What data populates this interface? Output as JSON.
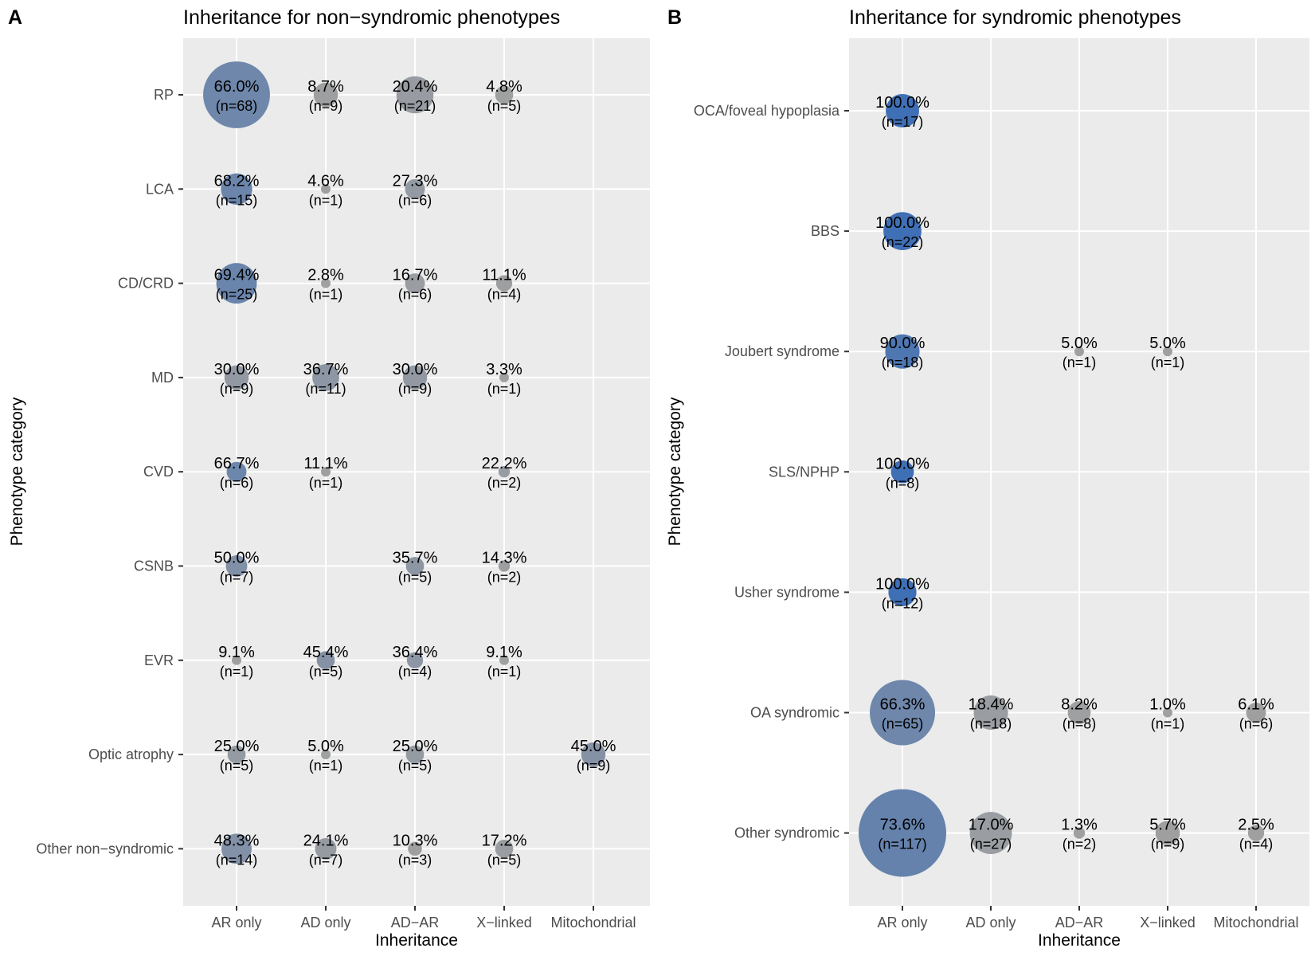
{
  "chart_data": [
    {
      "type": "scatter",
      "panel_tag": "A",
      "title": "Inheritance for non−syndromic phenotypes",
      "xlabel": "Inheritance",
      "ylabel": "Phenotype category",
      "x_categories": [
        "AR only",
        "AD only",
        "AD−AR",
        "X−linked",
        "Mitochondrial"
      ],
      "y_categories": [
        "RP",
        "LCA",
        "CD/CRD",
        "MD",
        "CVD",
        "CSNB",
        "EVR",
        "Optic atrophy",
        "Other non−syndromic"
      ],
      "grid": true,
      "size_encodes": "count",
      "color_encodes": "percentage",
      "color_low": "#a0a0a0",
      "color_high": "#3f6fb5",
      "points": [
        {
          "y": "RP",
          "x": "AR only",
          "pct": "66.0%",
          "n": "(n=68)",
          "count": 68,
          "value": 66.0
        },
        {
          "y": "RP",
          "x": "AD only",
          "pct": "8.7%",
          "n": "(n=9)",
          "count": 9,
          "value": 8.7
        },
        {
          "y": "RP",
          "x": "AD−AR",
          "pct": "20.4%",
          "n": "(n=21)",
          "count": 21,
          "value": 20.4
        },
        {
          "y": "RP",
          "x": "X−linked",
          "pct": "4.8%",
          "n": "(n=5)",
          "count": 5,
          "value": 4.8
        },
        {
          "y": "LCA",
          "x": "AR only",
          "pct": "68.2%",
          "n": "(n=15)",
          "count": 15,
          "value": 68.2
        },
        {
          "y": "LCA",
          "x": "AD only",
          "pct": "4.6%",
          "n": "(n=1)",
          "count": 1,
          "value": 4.6
        },
        {
          "y": "LCA",
          "x": "AD−AR",
          "pct": "27.3%",
          "n": "(n=6)",
          "count": 6,
          "value": 27.3
        },
        {
          "y": "CD/CRD",
          "x": "AR only",
          "pct": "69.4%",
          "n": "(n=25)",
          "count": 25,
          "value": 69.4
        },
        {
          "y": "CD/CRD",
          "x": "AD only",
          "pct": "2.8%",
          "n": "(n=1)",
          "count": 1,
          "value": 2.8
        },
        {
          "y": "CD/CRD",
          "x": "AD−AR",
          "pct": "16.7%",
          "n": "(n=6)",
          "count": 6,
          "value": 16.7
        },
        {
          "y": "CD/CRD",
          "x": "X−linked",
          "pct": "11.1%",
          "n": "(n=4)",
          "count": 4,
          "value": 11.1
        },
        {
          "y": "MD",
          "x": "AR only",
          "pct": "30.0%",
          "n": "(n=9)",
          "count": 9,
          "value": 30.0
        },
        {
          "y": "MD",
          "x": "AD only",
          "pct": "36.7%",
          "n": "(n=11)",
          "count": 11,
          "value": 36.7
        },
        {
          "y": "MD",
          "x": "AD−AR",
          "pct": "30.0%",
          "n": "(n=9)",
          "count": 9,
          "value": 30.0
        },
        {
          "y": "MD",
          "x": "X−linked",
          "pct": "3.3%",
          "n": "(n=1)",
          "count": 1,
          "value": 3.3
        },
        {
          "y": "CVD",
          "x": "AR only",
          "pct": "66.7%",
          "n": "(n=6)",
          "count": 6,
          "value": 66.7
        },
        {
          "y": "CVD",
          "x": "AD only",
          "pct": "11.1%",
          "n": "(n=1)",
          "count": 1,
          "value": 11.1
        },
        {
          "y": "CVD",
          "x": "X−linked",
          "pct": "22.2%",
          "n": "(n=2)",
          "count": 2,
          "value": 22.2
        },
        {
          "y": "CSNB",
          "x": "AR only",
          "pct": "50.0%",
          "n": "(n=7)",
          "count": 7,
          "value": 50.0
        },
        {
          "y": "CSNB",
          "x": "AD−AR",
          "pct": "35.7%",
          "n": "(n=5)",
          "count": 5,
          "value": 35.7
        },
        {
          "y": "CSNB",
          "x": "X−linked",
          "pct": "14.3%",
          "n": "(n=2)",
          "count": 2,
          "value": 14.3
        },
        {
          "y": "EVR",
          "x": "AR only",
          "pct": "9.1%",
          "n": "(n=1)",
          "count": 1,
          "value": 9.1
        },
        {
          "y": "EVR",
          "x": "AD only",
          "pct": "45.4%",
          "n": "(n=5)",
          "count": 5,
          "value": 45.4
        },
        {
          "y": "EVR",
          "x": "AD−AR",
          "pct": "36.4%",
          "n": "(n=4)",
          "count": 4,
          "value": 36.4
        },
        {
          "y": "EVR",
          "x": "X−linked",
          "pct": "9.1%",
          "n": "(n=1)",
          "count": 1,
          "value": 9.1
        },
        {
          "y": "Optic atrophy",
          "x": "AR only",
          "pct": "25.0%",
          "n": "(n=5)",
          "count": 5,
          "value": 25.0
        },
        {
          "y": "Optic atrophy",
          "x": "AD only",
          "pct": "5.0%",
          "n": "(n=1)",
          "count": 1,
          "value": 5.0
        },
        {
          "y": "Optic atrophy",
          "x": "AD−AR",
          "pct": "25.0%",
          "n": "(n=5)",
          "count": 5,
          "value": 25.0
        },
        {
          "y": "Optic atrophy",
          "x": "Mitochondrial",
          "pct": "45.0%",
          "n": "(n=9)",
          "count": 9,
          "value": 45.0
        },
        {
          "y": "Other non−syndromic",
          "x": "AR only",
          "pct": "48.3%",
          "n": "(n=14)",
          "count": 14,
          "value": 48.3
        },
        {
          "y": "Other non−syndromic",
          "x": "AD only",
          "pct": "24.1%",
          "n": "(n=7)",
          "count": 7,
          "value": 24.1
        },
        {
          "y": "Other non−syndromic",
          "x": "AD−AR",
          "pct": "10.3%",
          "n": "(n=3)",
          "count": 3,
          "value": 10.3
        },
        {
          "y": "Other non−syndromic",
          "x": "X−linked",
          "pct": "17.2%",
          "n": "(n=5)",
          "count": 5,
          "value": 17.2
        }
      ]
    },
    {
      "type": "scatter",
      "panel_tag": "B",
      "title": "Inheritance for syndromic phenotypes",
      "xlabel": "Inheritance",
      "ylabel": "Phenotype category",
      "x_categories": [
        "AR only",
        "AD only",
        "AD−AR",
        "X−linked",
        "Mitochondrial"
      ],
      "y_categories": [
        "OCA/foveal hypoplasia",
        "BBS",
        "Joubert syndrome",
        "SLS/NPHP",
        "Usher syndrome",
        "OA syndromic",
        "Other syndromic"
      ],
      "grid": true,
      "size_encodes": "count",
      "color_encodes": "percentage",
      "color_low": "#a0a0a0",
      "color_high": "#3f6fb5",
      "points": [
        {
          "y": "OCA/foveal hypoplasia",
          "x": "AR only",
          "pct": "100.0%",
          "n": "(n=17)",
          "count": 17,
          "value": 100.0
        },
        {
          "y": "BBS",
          "x": "AR only",
          "pct": "100.0%",
          "n": "(n=22)",
          "count": 22,
          "value": 100.0
        },
        {
          "y": "Joubert syndrome",
          "x": "AR only",
          "pct": "90.0%",
          "n": "(n=18)",
          "count": 18,
          "value": 90.0
        },
        {
          "y": "Joubert syndrome",
          "x": "AD−AR",
          "pct": "5.0%",
          "n": "(n=1)",
          "count": 1,
          "value": 5.0
        },
        {
          "y": "Joubert syndrome",
          "x": "X−linked",
          "pct": "5.0%",
          "n": "(n=1)",
          "count": 1,
          "value": 5.0
        },
        {
          "y": "SLS/NPHP",
          "x": "AR only",
          "pct": "100.0%",
          "n": "(n=8)",
          "count": 8,
          "value": 100.0
        },
        {
          "y": "Usher syndrome",
          "x": "AR only",
          "pct": "100.0%",
          "n": "(n=12)",
          "count": 12,
          "value": 100.0
        },
        {
          "y": "OA syndromic",
          "x": "AR only",
          "pct": "66.3%",
          "n": "(n=65)",
          "count": 65,
          "value": 66.3
        },
        {
          "y": "OA syndromic",
          "x": "AD only",
          "pct": "18.4%",
          "n": "(n=18)",
          "count": 18,
          "value": 18.4
        },
        {
          "y": "OA syndromic",
          "x": "AD−AR",
          "pct": "8.2%",
          "n": "(n=8)",
          "count": 8,
          "value": 8.2
        },
        {
          "y": "OA syndromic",
          "x": "X−linked",
          "pct": "1.0%",
          "n": "(n=1)",
          "count": 1,
          "value": 1.0
        },
        {
          "y": "OA syndromic",
          "x": "Mitochondrial",
          "pct": "6.1%",
          "n": "(n=6)",
          "count": 6,
          "value": 6.1
        },
        {
          "y": "Other syndromic",
          "x": "AR only",
          "pct": "73.6%",
          "n": "(n=117)",
          "count": 117,
          "value": 73.6
        },
        {
          "y": "Other syndromic",
          "x": "AD only",
          "pct": "17.0%",
          "n": "(n=27)",
          "count": 27,
          "value": 17.0
        },
        {
          "y": "Other syndromic",
          "x": "AD−AR",
          "pct": "1.3%",
          "n": "(n=2)",
          "count": 2,
          "value": 1.3
        },
        {
          "y": "Other syndromic",
          "x": "X−linked",
          "pct": "5.7%",
          "n": "(n=9)",
          "count": 9,
          "value": 5.7
        },
        {
          "y": "Other syndromic",
          "x": "Mitochondrial",
          "pct": "2.5%",
          "n": "(n=4)",
          "count": 4,
          "value": 2.5
        }
      ]
    }
  ]
}
